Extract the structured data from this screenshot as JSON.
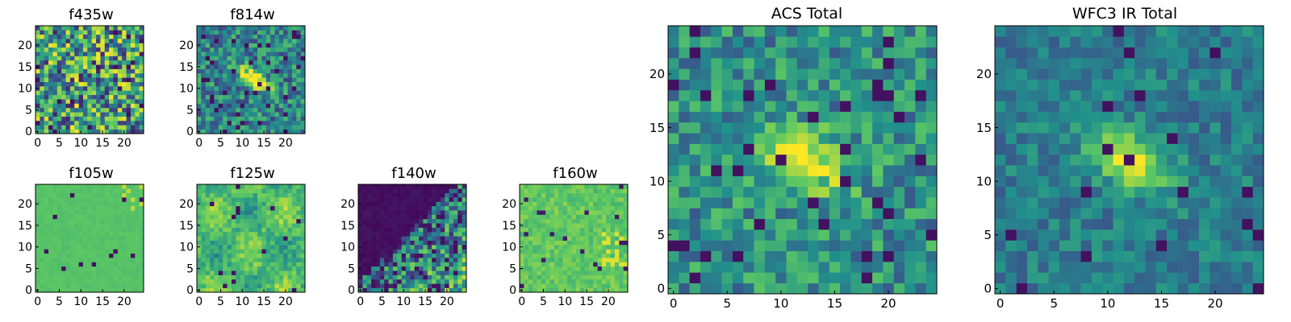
{
  "colormap": {
    "name": "viridis",
    "stops": [
      "#440154",
      "#3b528b",
      "#21918c",
      "#5ec962",
      "#fde725"
    ]
  },
  "chart_data": [
    {
      "type": "heatmap",
      "title": "f435w",
      "xlabel": "",
      "ylabel": "",
      "xlim": [
        -0.5,
        24.5
      ],
      "ylim": [
        -0.5,
        24.5
      ],
      "xticks": [
        0,
        5,
        10,
        15,
        20
      ],
      "yticks": [
        0,
        5,
        10,
        15,
        20
      ],
      "grid": false,
      "pattern": "noise"
    },
    {
      "type": "heatmap",
      "title": "f814w",
      "xlabel": "",
      "ylabel": "",
      "xlim": [
        -0.5,
        24.5
      ],
      "ylim": [
        -0.5,
        24.5
      ],
      "xticks": [
        0,
        5,
        10,
        15,
        20
      ],
      "yticks": [
        0,
        5,
        10,
        15,
        20
      ],
      "grid": false,
      "pattern": "source"
    },
    {
      "type": "heatmap",
      "title": "f105w",
      "xlabel": "",
      "ylabel": "",
      "xlim": [
        -0.5,
        24.5
      ],
      "ylim": [
        -0.5,
        24.5
      ],
      "xticks": [
        0,
        5,
        10,
        15,
        20
      ],
      "yticks": [
        0,
        5,
        10,
        15,
        20
      ],
      "grid": false,
      "pattern": "flat"
    },
    {
      "type": "heatmap",
      "title": "f125w",
      "xlabel": "",
      "ylabel": "",
      "xlim": [
        -0.5,
        24.5
      ],
      "ylim": [
        -0.5,
        24.5
      ],
      "xticks": [
        0,
        5,
        10,
        15,
        20
      ],
      "yticks": [
        0,
        5,
        10,
        15,
        20
      ],
      "grid": false,
      "pattern": "patchy"
    },
    {
      "type": "heatmap",
      "title": "f140w",
      "xlabel": "",
      "ylabel": "",
      "xlim": [
        -0.5,
        24.5
      ],
      "ylim": [
        -0.5,
        24.5
      ],
      "xticks": [
        0,
        5,
        10,
        15,
        20
      ],
      "yticks": [
        0,
        5,
        10,
        15,
        20
      ],
      "grid": false,
      "pattern": "dark-corner"
    },
    {
      "type": "heatmap",
      "title": "f160w",
      "xlabel": "",
      "ylabel": "",
      "xlim": [
        -0.5,
        24.5
      ],
      "ylim": [
        -0.5,
        24.5
      ],
      "xticks": [
        0,
        5,
        10,
        15,
        20
      ],
      "yticks": [
        0,
        5,
        10,
        15,
        20
      ],
      "grid": false,
      "pattern": "patchy2"
    },
    {
      "type": "heatmap",
      "title": "ACS Total",
      "xlabel": "",
      "ylabel": "",
      "xlim": [
        -0.5,
        24.5
      ],
      "ylim": [
        -0.5,
        24.5
      ],
      "xticks": [
        0,
        5,
        10,
        15,
        20
      ],
      "yticks": [
        0,
        5,
        10,
        15,
        20
      ],
      "grid": false,
      "pattern": "source-noisy"
    },
    {
      "type": "heatmap",
      "title": "WFC3 IR Total",
      "xlabel": "",
      "ylabel": "",
      "xlim": [
        -0.5,
        24.5
      ],
      "ylim": [
        -0.5,
        24.5
      ],
      "xticks": [
        0,
        5,
        10,
        15,
        20
      ],
      "yticks": [
        0,
        5,
        10,
        15,
        20
      ],
      "grid": false,
      "pattern": "source-smooth"
    }
  ]
}
